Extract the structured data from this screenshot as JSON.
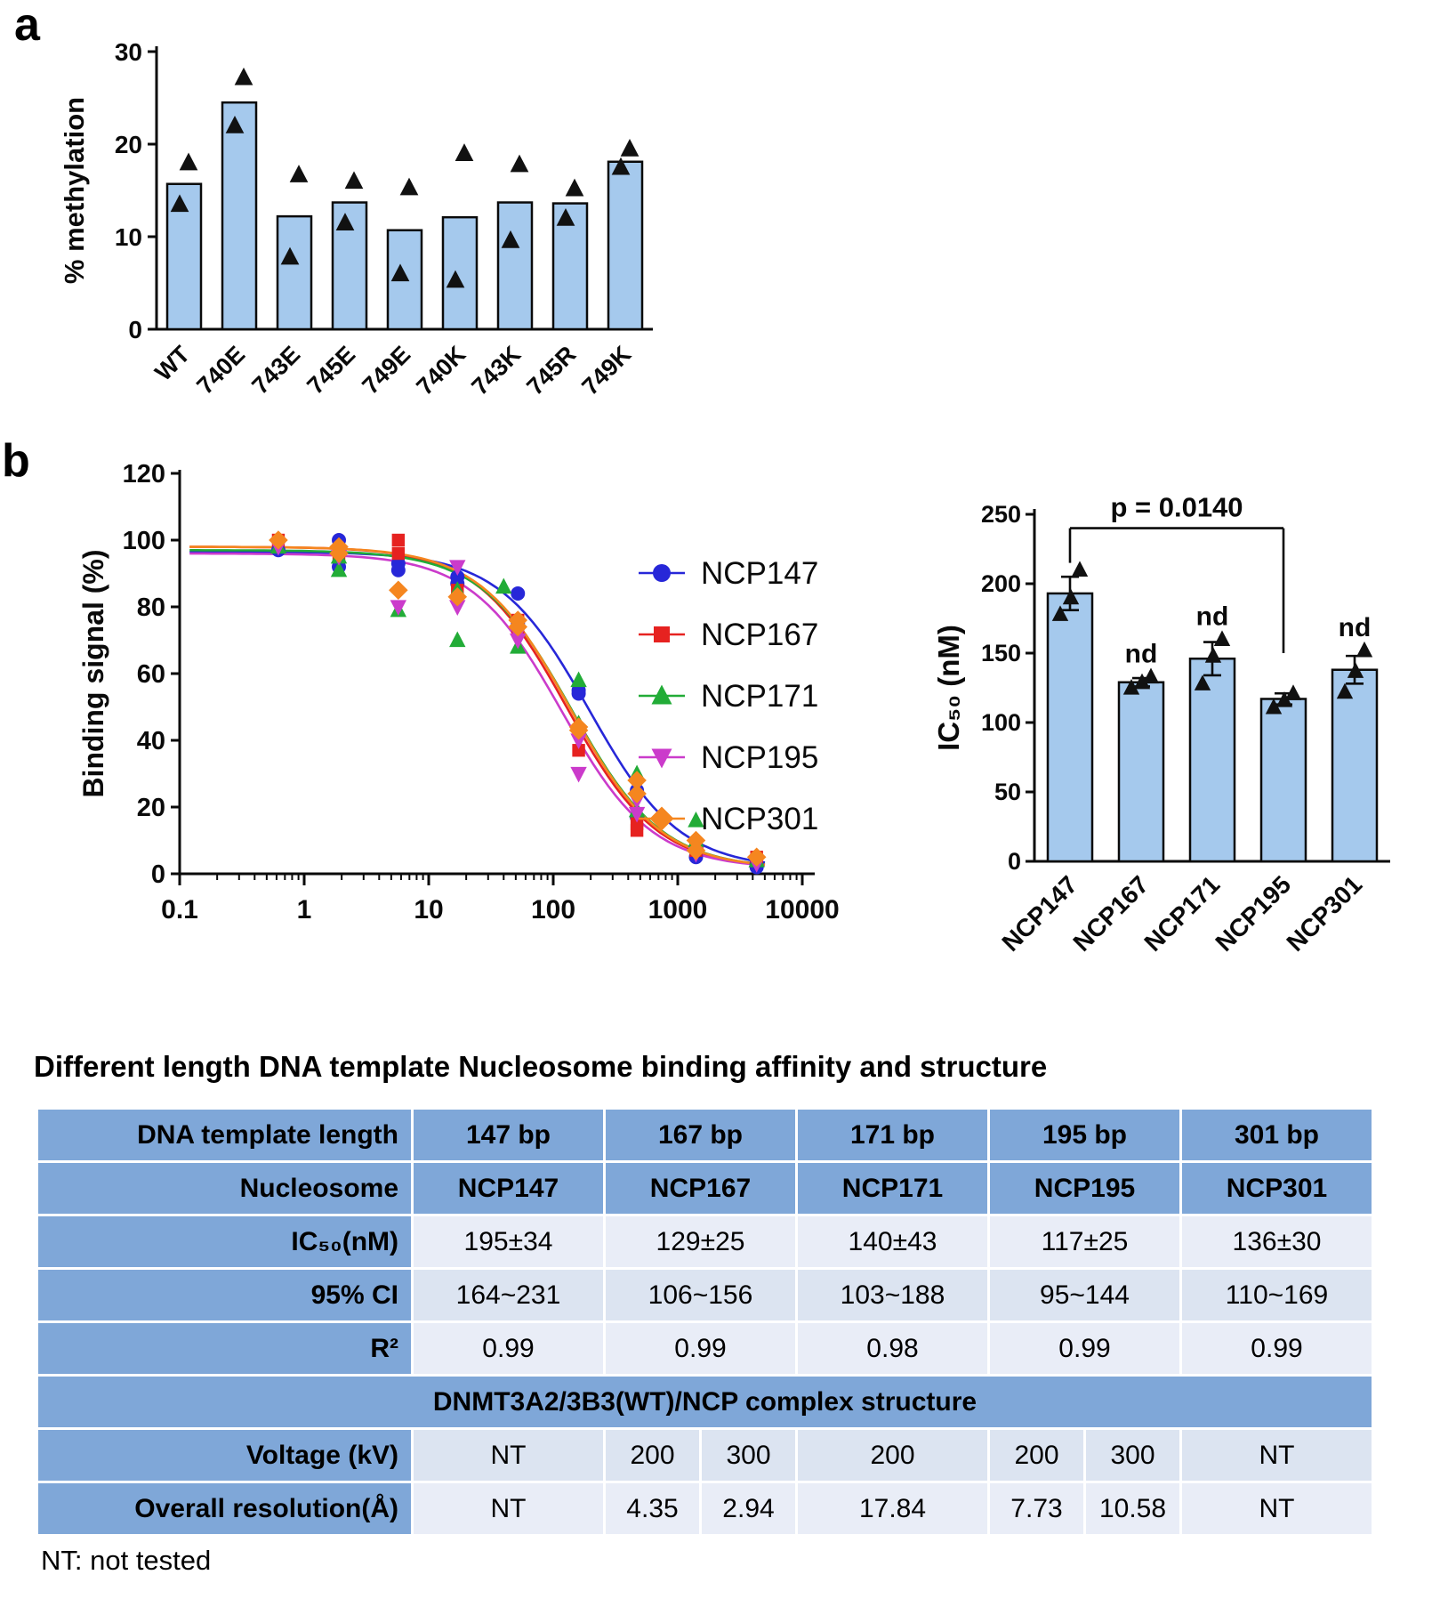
{
  "labels": {
    "panel_a": "a",
    "panel_b": "b"
  },
  "footer_note": "NT: not tested",
  "chart_data": [
    {
      "id": "methylation",
      "type": "bar",
      "title": "",
      "xlabel": "",
      "ylabel": "% methylation",
      "ylim": [
        0,
        30
      ],
      "yticks": [
        0,
        10,
        20,
        30
      ],
      "categories": [
        "WT",
        "740E",
        "743E",
        "745E",
        "749E",
        "740K",
        "743K",
        "745R",
        "749K"
      ],
      "values": [
        15.7,
        24.5,
        12.2,
        13.7,
        10.7,
        12.1,
        13.7,
        13.6,
        18.1
      ],
      "points": [
        [
          13.5,
          18
        ],
        [
          22,
          27.2
        ],
        [
          7.8,
          16.7
        ],
        [
          11.5,
          16
        ],
        [
          6,
          15.3
        ],
        [
          5.3,
          19
        ],
        [
          9.6,
          17.8
        ],
        [
          12,
          15.2
        ],
        [
          17.5,
          19.5
        ]
      ],
      "bar_fill": "#A5C9ED"
    },
    {
      "id": "binding",
      "type": "line",
      "title": "",
      "xlabel": "",
      "ylabel": "Binding signal (%)",
      "xscale": "log",
      "xlim": [
        0.1,
        10000
      ],
      "ylim": [
        0,
        120
      ],
      "yticks": [
        0,
        20,
        40,
        60,
        80,
        100,
        120
      ],
      "xticks": [
        0.1,
        1,
        10,
        100,
        1000,
        10000
      ],
      "hill": 1.2,
      "bottom": 1.5,
      "legend_position": "right-inside",
      "series": [
        {
          "name": "NCP147",
          "color": "#2727D8",
          "marker": "circle",
          "ic50": 195,
          "top": 96.5,
          "points": [
            [
              0.62,
              97
            ],
            [
              1.9,
              100
            ],
            [
              1.9,
              92
            ],
            [
              5.7,
              93
            ],
            [
              5.7,
              91
            ],
            [
              17,
              89
            ],
            [
              17,
              87
            ],
            [
              52,
              84
            ],
            [
              52,
              75
            ],
            [
              160,
              55
            ],
            [
              160,
              54
            ],
            [
              470,
              25
            ],
            [
              470,
              17
            ],
            [
              1400,
              8
            ],
            [
              1400,
              5
            ],
            [
              4300,
              3
            ],
            [
              4300,
              2
            ]
          ]
        },
        {
          "name": "NCP167",
          "color": "#E62220",
          "marker": "square",
          "ic50": 129,
          "top": 98,
          "points": [
            [
              0.62,
              100
            ],
            [
              1.9,
              95
            ],
            [
              5.7,
              100
            ],
            [
              5.7,
              96
            ],
            [
              17,
              85
            ],
            [
              52,
              76
            ],
            [
              52,
              74
            ],
            [
              160,
              43
            ],
            [
              160,
              37
            ],
            [
              470,
              15
            ],
            [
              470,
              13
            ],
            [
              1400,
              7
            ],
            [
              4300,
              5
            ],
            [
              4300,
              4
            ]
          ]
        },
        {
          "name": "NCP171",
          "color": "#22AC37",
          "marker": "tri-up",
          "ic50": 140,
          "top": 97,
          "points": [
            [
              0.62,
              98
            ],
            [
              1.9,
              91
            ],
            [
              1.9,
              95
            ],
            [
              5.7,
              79
            ],
            [
              17,
              85
            ],
            [
              17,
              70
            ],
            [
              40,
              86
            ],
            [
              52,
              68
            ],
            [
              160,
              58
            ],
            [
              160,
              45
            ],
            [
              470,
              30
            ],
            [
              470,
              19
            ],
            [
              1400,
              16
            ],
            [
              1400,
              10
            ],
            [
              4300,
              4
            ]
          ]
        },
        {
          "name": "NCP195",
          "color": "#CB3BCB",
          "marker": "tri-down",
          "ic50": 117,
          "top": 96,
          "points": [
            [
              0.62,
              98
            ],
            [
              1.9,
              95
            ],
            [
              5.7,
              80
            ],
            [
              17,
              92
            ],
            [
              17,
              80
            ],
            [
              52,
              72
            ],
            [
              52,
              70
            ],
            [
              160,
              40
            ],
            [
              160,
              30
            ],
            [
              470,
              22
            ],
            [
              470,
              18
            ],
            [
              1400,
              6
            ],
            [
              4300,
              3
            ]
          ]
        },
        {
          "name": "NCP301",
          "color": "#F5861F",
          "marker": "diamond",
          "ic50": 136,
          "top": 98,
          "points": [
            [
              0.62,
              100
            ],
            [
              1.9,
              98
            ],
            [
              1.9,
              96
            ],
            [
              5.7,
              85
            ],
            [
              17,
              83
            ],
            [
              52,
              76
            ],
            [
              52,
              74
            ],
            [
              160,
              44
            ],
            [
              160,
              43
            ],
            [
              470,
              28
            ],
            [
              470,
              24
            ],
            [
              1400,
              10
            ],
            [
              1400,
              7
            ],
            [
              4300,
              5
            ]
          ]
        }
      ]
    },
    {
      "id": "ic50",
      "type": "bar",
      "title": "",
      "xlabel": "",
      "ylabel": "IC₅₀ (nM)",
      "ylim": [
        0,
        250
      ],
      "yticks": [
        0,
        50,
        100,
        150,
        200,
        250
      ],
      "categories": [
        "NCP147",
        "NCP167",
        "NCP171",
        "NCP195",
        "NCP301"
      ],
      "values": [
        193,
        129,
        146,
        117,
        138
      ],
      "errors": [
        12,
        3,
        12,
        4,
        10
      ],
      "points": [
        [
          178,
          190,
          210
        ],
        [
          125,
          129,
          133
        ],
        [
          128,
          148,
          160
        ],
        [
          111,
          116,
          121
        ],
        [
          122,
          137,
          152
        ]
      ],
      "nd": [
        false,
        true,
        true,
        false,
        true
      ],
      "nd_label": "nd",
      "p": {
        "text": "p = 0.0140",
        "from": 0,
        "to": 3,
        "bar_y": 240,
        "left_drop": 215,
        "right_drop": 150
      },
      "bar_fill": "#A5C9ED"
    }
  ],
  "table": {
    "title": "Different length DNA template Nucleosome binding affinity and structure",
    "rows": [
      {
        "type": "h",
        "label": "DNA template length",
        "cells": [
          {
            "t": "147 bp",
            "s": 2
          },
          {
            "t": "167 bp",
            "s": 2
          },
          {
            "t": "171 bp",
            "s": 2
          },
          {
            "t": "195 bp",
            "s": 2
          },
          {
            "t": "301 bp",
            "s": 2
          }
        ]
      },
      {
        "type": "h",
        "label": "Nucleosome",
        "cells": [
          {
            "t": "NCP147",
            "s": 2
          },
          {
            "t": "NCP167",
            "s": 2
          },
          {
            "t": "NCP171",
            "s": 2
          },
          {
            "t": "NCP195",
            "s": 2
          },
          {
            "t": "NCP301",
            "s": 2
          }
        ]
      },
      {
        "type": "d",
        "tint": 1,
        "label": "IC₅₀(nM)",
        "cells": [
          {
            "t": "195±34",
            "s": 2
          },
          {
            "t": "129±25",
            "s": 2
          },
          {
            "t": "140±43",
            "s": 2
          },
          {
            "t": "117±25",
            "s": 2
          },
          {
            "t": "136±30",
            "s": 2
          }
        ]
      },
      {
        "type": "d",
        "tint": 2,
        "label": "95% CI",
        "cells": [
          {
            "t": "164~231",
            "s": 2
          },
          {
            "t": "106~156",
            "s": 2
          },
          {
            "t": "103~188",
            "s": 2
          },
          {
            "t": "95~144",
            "s": 2
          },
          {
            "t": "110~169",
            "s": 2
          }
        ]
      },
      {
        "type": "d",
        "tint": 1,
        "label": "R²",
        "cells": [
          {
            "t": "0.99",
            "s": 2
          },
          {
            "t": "0.99",
            "s": 2
          },
          {
            "t": "0.98",
            "s": 2
          },
          {
            "t": "0.99",
            "s": 2
          },
          {
            "t": "0.99",
            "s": 2
          }
        ]
      },
      {
        "type": "span",
        "label": "DNMT3A2/3B3(WT)/NCP complex structure"
      },
      {
        "type": "d",
        "tint": 2,
        "label": "Voltage (kV)",
        "cells": [
          {
            "t": "NT",
            "s": 2
          },
          {
            "t": "200",
            "s": 1
          },
          {
            "t": "300",
            "s": 1
          },
          {
            "t": "200",
            "s": 2
          },
          {
            "t": "200",
            "s": 1
          },
          {
            "t": "300",
            "s": 1
          },
          {
            "t": "NT",
            "s": 2
          }
        ]
      },
      {
        "type": "d",
        "tint": 1,
        "label": "Overall resolution(Å)",
        "cells": [
          {
            "t": "NT",
            "s": 2
          },
          {
            "t": "4.35",
            "s": 1
          },
          {
            "t": "2.94",
            "s": 1
          },
          {
            "t": "17.84",
            "s": 2
          },
          {
            "t": "7.73",
            "s": 1
          },
          {
            "t": "10.58",
            "s": 1
          },
          {
            "t": "NT",
            "s": 2
          }
        ]
      }
    ]
  }
}
